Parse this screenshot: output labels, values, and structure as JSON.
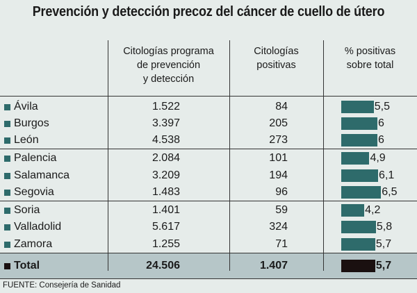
{
  "title": "Prevención y detección precoz del cáncer de cuello de útero",
  "chart_data": {
    "type": "table",
    "title": "Prevención y detección precoz del cáncer de cuello de útero",
    "columns": [
      "",
      "Citologías programa de prevención y detección",
      "Citologías positivas",
      "% positivas sobre total"
    ],
    "column_lines": {
      "c1": [
        "Citologías programa",
        "de prevención",
        "y detección"
      ],
      "c2": [
        "Citologías",
        "positivas"
      ],
      "c3": [
        "% positivas",
        "sobre total"
      ]
    },
    "rows": [
      {
        "name": "Ávila",
        "citologias": "1.522",
        "positivas": "84",
        "pct": 5.5,
        "pct_label": "5,5"
      },
      {
        "name": "Burgos",
        "citologias": "3.397",
        "positivas": "205",
        "pct": 6,
        "pct_label": "6"
      },
      {
        "name": "León",
        "citologias": "4.538",
        "positivas": "273",
        "pct": 6,
        "pct_label": "6"
      },
      {
        "name": "Palencia",
        "citologias": "2.084",
        "positivas": "101",
        "pct": 4.9,
        "pct_label": "4,9"
      },
      {
        "name": "Salamanca",
        "citologias": "3.209",
        "positivas": "194",
        "pct": 6.1,
        "pct_label": "6,1"
      },
      {
        "name": "Segovia",
        "citologias": "1.483",
        "positivas": "96",
        "pct": 6.5,
        "pct_label": "6,5"
      },
      {
        "name": "Soria",
        "citologias": "1.401",
        "positivas": "59",
        "pct": 4.2,
        "pct_label": "4,2"
      },
      {
        "name": "Valladolid",
        "citologias": "5.617",
        "positivas": "324",
        "pct": 5.8,
        "pct_label": "5,8"
      },
      {
        "name": "Zamora",
        "citologias": "1.255",
        "positivas": "71",
        "pct": 5.7,
        "pct_label": "5,7"
      }
    ],
    "total": {
      "name": "Total",
      "citologias": "24.506",
      "positivas": "1.407",
      "pct": 5.7,
      "pct_label": "5,7"
    },
    "colors": {
      "bar": "#2e6b6b",
      "total_bar": "#1a1010",
      "total_row_bg": "#b6c6c8",
      "background": "#e6ecea"
    }
  },
  "footer": "FUENTE: Consejería de Sanidad"
}
